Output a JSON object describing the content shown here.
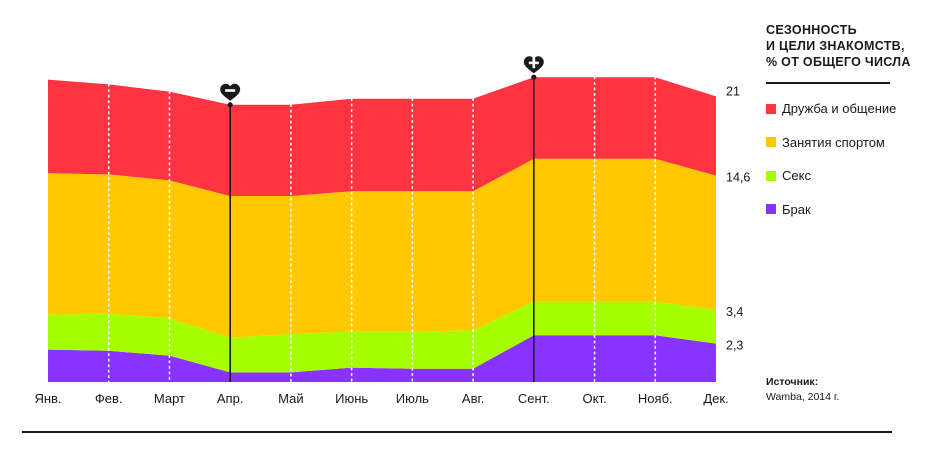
{
  "legend": {
    "title_lines": [
      "СЕЗОННОСТЬ",
      "И ЦЕЛИ ЗНАКОМСТВ,",
      "% ОТ ОБЩЕГО ЧИСЛА"
    ],
    "items": [
      {
        "label": "Дружба и общение",
        "color": "#ff3341"
      },
      {
        "label": "Занятия спортом",
        "color": "#ffc800"
      },
      {
        "label": "Секс",
        "color": "#a6ff00"
      },
      {
        "label": "Брак",
        "color": "#8833ff"
      }
    ]
  },
  "source": {
    "label": "Источник:",
    "text": "Wamba, 2014 г."
  },
  "markers": [
    {
      "month_index": 3,
      "icon": "minus-heart-icon"
    },
    {
      "month_index": 8,
      "icon": "plus-heart-icon"
    }
  ],
  "chart_data": {
    "type": "area",
    "stacked": true,
    "title": "СЕЗОННОСТЬ И ЦЕЛИ ЗНАКОМСТВ, % ОТ ОБЩЕГО ЧИСЛА",
    "categories": [
      "Янв.",
      "Фев.",
      "Март",
      "Апр.",
      "Май",
      "Июнь",
      "Июль",
      "Авг.",
      "Сент.",
      "Окт.",
      "Нояб.",
      "Дек."
    ],
    "series": [
      {
        "name": "Брак",
        "color": "#8833ff",
        "values": [
          2.7,
          2.6,
          2.2,
          0.8,
          0.8,
          1.2,
          1.1,
          1.1,
          3.9,
          3.9,
          3.9,
          3.2
        ]
      },
      {
        "name": "Секс",
        "color": "#a6ff00",
        "values": [
          2.9,
          3.1,
          3.1,
          2.9,
          3.2,
          3.0,
          3.1,
          3.2,
          2.8,
          2.8,
          2.8,
          2.8
        ]
      },
      {
        "name": "Занятия спортом",
        "color": "#ffc800",
        "values": [
          11.8,
          11.6,
          11.5,
          11.8,
          11.5,
          11.7,
          11.7,
          11.6,
          11.9,
          11.9,
          11.9,
          11.2
        ]
      },
      {
        "name": "Дружба и общение",
        "color": "#ff3341",
        "values": [
          7.8,
          7.5,
          7.4,
          7.6,
          7.6,
          7.7,
          7.7,
          7.7,
          6.8,
          6.8,
          6.8,
          6.6
        ]
      }
    ],
    "right_labels": [
      "21",
      "14,6",
      "3,4",
      "2,3"
    ],
    "ylim": [
      0,
      25
    ],
    "grid": "vertical-dotted"
  }
}
